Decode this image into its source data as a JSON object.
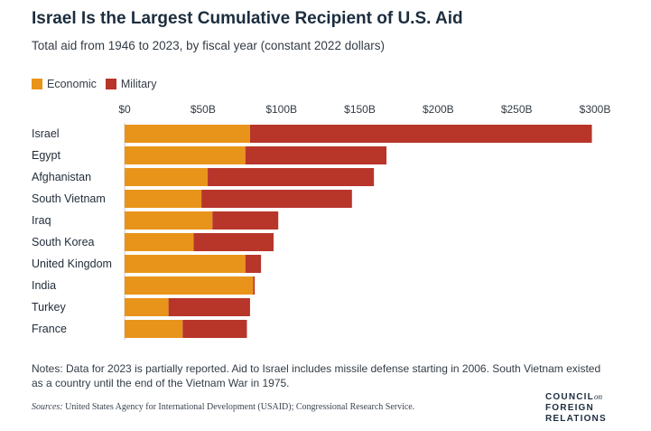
{
  "header": {
    "title": "Israel Is the Largest Cumulative Recipient of U.S. Aid",
    "subtitle": "Total aid from 1946 to 2023, by fiscal year (constant 2022 dollars)"
  },
  "legend": [
    {
      "label": "Economic",
      "color": "#e8941a"
    },
    {
      "label": "Military",
      "color": "#b8352a"
    }
  ],
  "chart_data": {
    "type": "bar",
    "orientation": "horizontal",
    "stacked": true,
    "categories": [
      "Israel",
      "Egypt",
      "Afghanistan",
      "South Vietnam",
      "Iraq",
      "South Korea",
      "United Kingdom",
      "India",
      "Turkey",
      "France"
    ],
    "series": [
      {
        "name": "Economic",
        "color": "#e8941a",
        "values": [
          80,
          77,
          53,
          49,
          56,
          44,
          77,
          82,
          28,
          37
        ]
      },
      {
        "name": "Military",
        "color": "#b8352a",
        "values": [
          218,
          90,
          106,
          96,
          42,
          51,
          10,
          1,
          52,
          41
        ]
      }
    ],
    "xlim": [
      0,
      300
    ],
    "ticks": [
      {
        "value": 0,
        "label": "$0"
      },
      {
        "value": 50,
        "label": "$50B"
      },
      {
        "value": 100,
        "label": "$100B"
      },
      {
        "value": 150,
        "label": "$150B"
      },
      {
        "value": 200,
        "label": "$200B"
      },
      {
        "value": 250,
        "label": "$250B"
      },
      {
        "value": 300,
        "label": "$300B"
      }
    ],
    "tick_position": "top",
    "grid": false,
    "legend_position": "top-left"
  },
  "footer": {
    "notes": "Notes: Data for 2023 is partially reported. Aid to Israel includes missile defense starting in 2006. South Vietnam existed as a country until the end of the Vietnam War in 1975.",
    "sources_label": "Sources:",
    "sources_text": "United States Agency for International Development (USAID); Congressional Research Service.",
    "logo_line1": "COUNCIL",
    "logo_on": "on",
    "logo_line2": "FOREIGN",
    "logo_line3": "RELATIONS"
  }
}
